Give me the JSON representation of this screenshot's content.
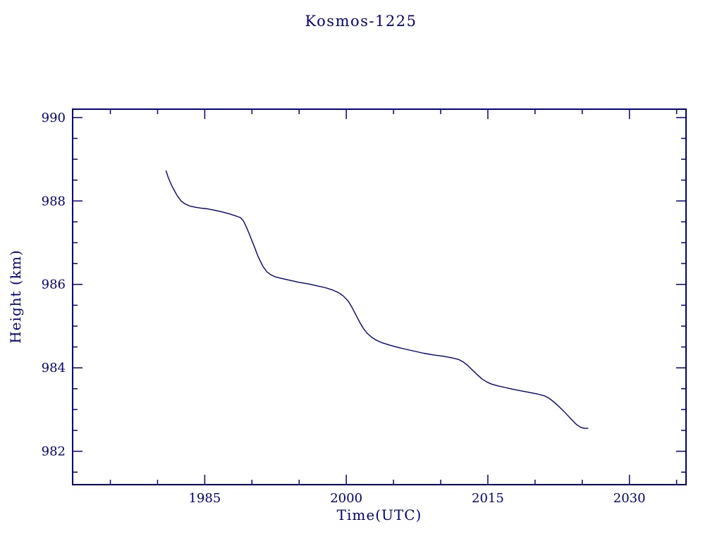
{
  "page": {
    "background": "#ffffff"
  },
  "chart_data": {
    "type": "line",
    "title": "Kosmos-1225",
    "xlabel": "Time(UTC)",
    "ylabel": "Height (km)",
    "xlim": [
      1971,
      2036
    ],
    "ylim": [
      981.2,
      990.2
    ],
    "x_major_ticks": [
      1985,
      2000,
      2015,
      2030
    ],
    "x_minor_step": 5,
    "y_major_ticks": [
      982,
      984,
      986,
      988,
      990
    ],
    "y_minor_step": 0.5,
    "grid": false,
    "legend": "none",
    "axis_color": "#000080",
    "line_color": "#000080",
    "series": [
      {
        "name": "height",
        "points": [
          [
            1980.9,
            988.72
          ],
          [
            1981.0,
            988.66
          ],
          [
            1981.1,
            988.58
          ],
          [
            1981.3,
            988.47
          ],
          [
            1981.5,
            988.37
          ],
          [
            1981.8,
            988.24
          ],
          [
            1982.1,
            988.12
          ],
          [
            1982.5,
            988.0
          ],
          [
            1982.9,
            987.93
          ],
          [
            1983.4,
            987.88
          ],
          [
            1984.0,
            987.85
          ],
          [
            1984.6,
            987.83
          ],
          [
            1985.3,
            987.81
          ],
          [
            1986.0,
            987.78
          ],
          [
            1986.8,
            987.74
          ],
          [
            1987.6,
            987.69
          ],
          [
            1988.3,
            987.64
          ],
          [
            1988.8,
            987.6
          ],
          [
            1989.1,
            987.52
          ],
          [
            1989.4,
            987.38
          ],
          [
            1989.7,
            987.22
          ],
          [
            1990.0,
            987.05
          ],
          [
            1990.3,
            986.88
          ],
          [
            1990.6,
            986.7
          ],
          [
            1990.9,
            986.55
          ],
          [
            1991.2,
            986.42
          ],
          [
            1991.6,
            986.3
          ],
          [
            1992.0,
            986.23
          ],
          [
            1992.5,
            986.18
          ],
          [
            1993.2,
            986.14
          ],
          [
            1994.0,
            986.1
          ],
          [
            1995.0,
            986.05
          ],
          [
            1996.0,
            986.01
          ],
          [
            1997.0,
            985.96
          ],
          [
            1997.8,
            985.92
          ],
          [
            1998.5,
            985.87
          ],
          [
            1999.2,
            985.8
          ],
          [
            1999.7,
            985.72
          ],
          [
            2000.2,
            985.6
          ],
          [
            2000.6,
            985.45
          ],
          [
            2001.0,
            985.28
          ],
          [
            2001.4,
            985.1
          ],
          [
            2001.8,
            984.95
          ],
          [
            2002.2,
            984.83
          ],
          [
            2002.7,
            984.73
          ],
          [
            2003.2,
            984.66
          ],
          [
            2003.8,
            984.6
          ],
          [
            2004.5,
            984.55
          ],
          [
            2005.3,
            984.5
          ],
          [
            2006.2,
            984.45
          ],
          [
            2007.2,
            984.4
          ],
          [
            2008.2,
            984.35
          ],
          [
            2009.2,
            984.31
          ],
          [
            2010.2,
            984.28
          ],
          [
            2011.2,
            984.24
          ],
          [
            2011.9,
            984.2
          ],
          [
            2012.4,
            984.14
          ],
          [
            2012.9,
            984.05
          ],
          [
            2013.4,
            983.94
          ],
          [
            2013.9,
            983.83
          ],
          [
            2014.4,
            983.73
          ],
          [
            2014.9,
            983.66
          ],
          [
            2015.4,
            983.61
          ],
          [
            2016.0,
            983.57
          ],
          [
            2016.8,
            983.53
          ],
          [
            2017.6,
            983.49
          ],
          [
            2018.5,
            983.45
          ],
          [
            2019.4,
            983.41
          ],
          [
            2020.3,
            983.37
          ],
          [
            2021.0,
            983.33
          ],
          [
            2021.5,
            983.27
          ],
          [
            2022.0,
            983.18
          ],
          [
            2022.5,
            983.08
          ],
          [
            2023.0,
            982.97
          ],
          [
            2023.5,
            982.85
          ],
          [
            2024.0,
            982.73
          ],
          [
            2024.4,
            982.64
          ],
          [
            2024.8,
            982.58
          ],
          [
            2025.2,
            982.55
          ],
          [
            2025.6,
            982.55
          ]
        ]
      }
    ]
  }
}
